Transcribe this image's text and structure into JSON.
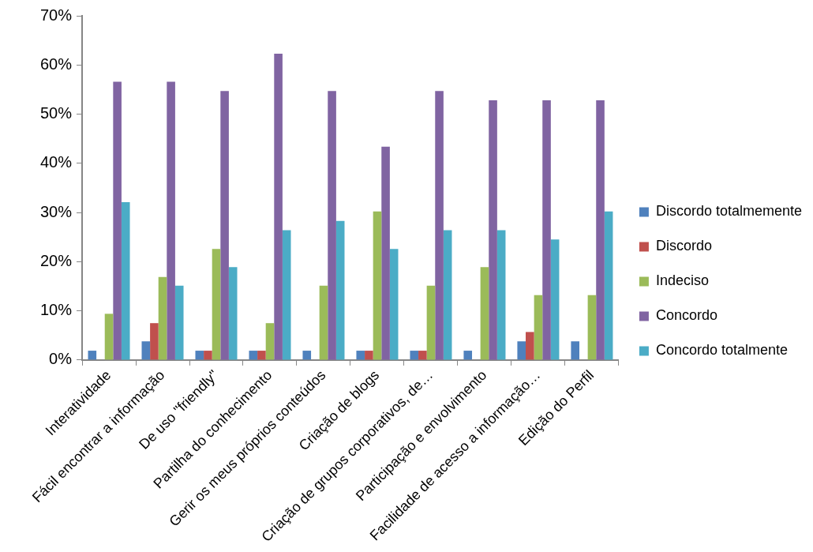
{
  "chart_data": {
    "type": "bar",
    "categories": [
      "Interatividade",
      "Fácil encontrar a informação",
      "De uso \"friendly\"",
      "Partilha do conhecimento",
      "Gerir os meus próprios conteúdos",
      "Criação de blogs",
      "Criação de grupos corporativos, de…",
      "Participação e envolvimento",
      "Facilidade de acesso a informação…",
      "Edição do Perfil"
    ],
    "series": [
      {
        "name": "Discordo totalmemente",
        "color": "#4f81bd",
        "values": [
          1.9,
          3.8,
          1.9,
          1.9,
          1.9,
          1.9,
          1.9,
          1.9,
          3.8,
          3.8
        ]
      },
      {
        "name": "Discordo",
        "color": "#c0504d",
        "values": [
          0,
          7.5,
          1.9,
          1.9,
          0,
          1.9,
          1.9,
          0,
          5.7,
          0
        ]
      },
      {
        "name": "Indeciso",
        "color": "#9bbb59",
        "values": [
          9.4,
          16.9,
          22.6,
          7.5,
          15.1,
          30.2,
          15.1,
          18.9,
          13.2,
          13.2
        ]
      },
      {
        "name": "Concordo",
        "color": "#8064a2",
        "values": [
          56.6,
          56.6,
          54.7,
          62.3,
          54.7,
          43.4,
          54.7,
          52.8,
          52.8,
          52.8
        ]
      },
      {
        "name": "Concordo totalmente",
        "color": "#4bacc6",
        "values": [
          32.1,
          15.1,
          18.9,
          26.4,
          28.3,
          22.6,
          26.4,
          26.4,
          24.5,
          30.2
        ]
      }
    ],
    "ylim": [
      0,
      70
    ],
    "yticks": [
      {
        "value": 0,
        "label": "0%"
      },
      {
        "value": 10,
        "label": "10%"
      },
      {
        "value": 20,
        "label": "20%"
      },
      {
        "value": 30,
        "label": "30%"
      },
      {
        "value": 40,
        "label": "40%"
      },
      {
        "value": 50,
        "label": "50%"
      },
      {
        "value": 60,
        "label": "60%"
      },
      {
        "value": 70,
        "label": "70%"
      }
    ],
    "grid": false,
    "legend": "right"
  }
}
